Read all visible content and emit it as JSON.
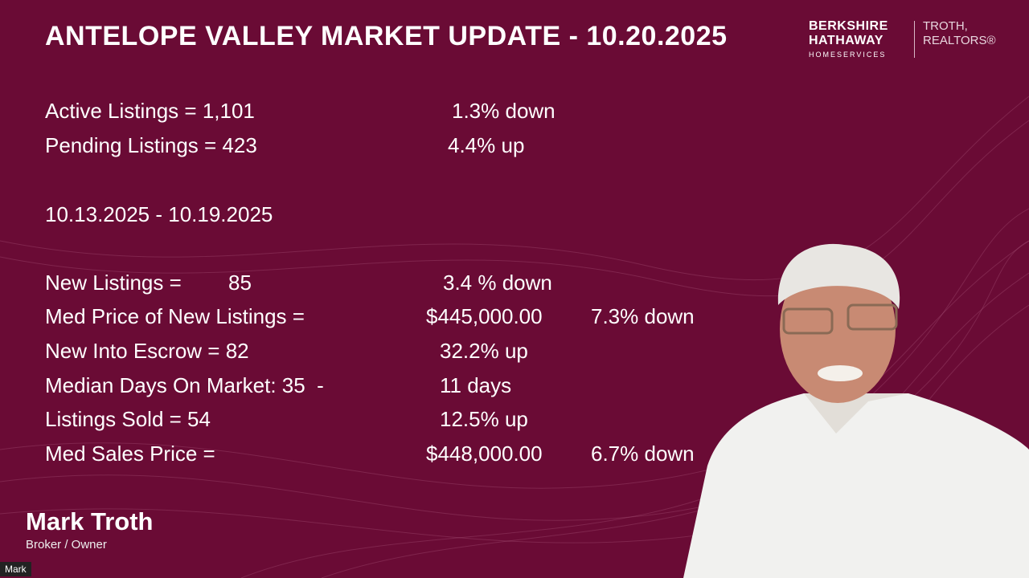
{
  "header": {
    "title": "ANTELOPE VALLEY MARKET UPDATE - 10.20.2025",
    "logo": {
      "line1": "BERKSHIRE",
      "line2": "HATHAWAY",
      "line3": "HOMESERVICES",
      "partner1": "TROTH,",
      "partner2": "REALTORS®"
    }
  },
  "inventory": [
    {
      "label": "Active Listings = 1,101",
      "change": "1.3% down"
    },
    {
      "label": "Pending Listings = 423",
      "change": "4.4% up"
    }
  ],
  "date_range": "10.13.2025 - 10.19.2025",
  "weekly": [
    {
      "label": "New Listings =",
      "value": "85",
      "change": "3.4 % down"
    },
    {
      "label": "Med Price of New Listings =",
      "value": "$445,000.00",
      "change": "7.3% down"
    },
    {
      "label": "New Into Escrow = 82",
      "change": "32.2% up"
    },
    {
      "label": "Median Days On Market: 35  -",
      "change": "11 days"
    },
    {
      "label": "Listings Sold = 54",
      "change": "12.5% up"
    },
    {
      "label": "Med Sales Price =",
      "value": "$448,000.00",
      "change": "6.7% down"
    }
  ],
  "presenter": {
    "name": "Mark Troth",
    "role": "Broker / Owner",
    "video_label": "Mark"
  }
}
